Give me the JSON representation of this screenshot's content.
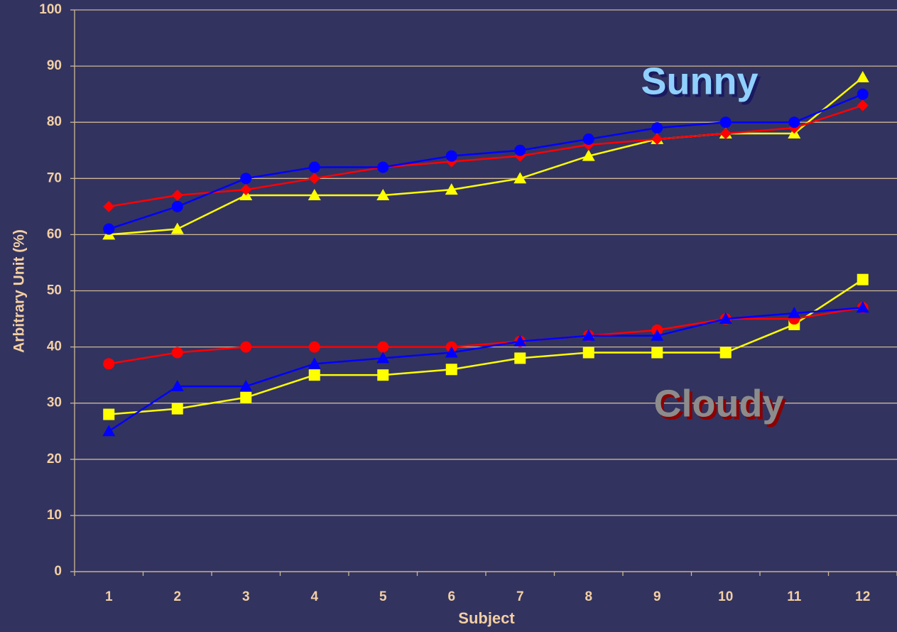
{
  "chart_data": {
    "type": "line",
    "categories": [
      "1",
      "2",
      "3",
      "4",
      "5",
      "6",
      "7",
      "8",
      "9",
      "10",
      "11",
      "12"
    ],
    "series": [
      {
        "color": "#ffff00",
        "marker": "triangle",
        "values": [
          60,
          61,
          67,
          67,
          67,
          68,
          70,
          74,
          77,
          78,
          78,
          88
        ]
      },
      {
        "color": "#ff0000",
        "marker": "diamond",
        "values": [
          65,
          67,
          68,
          70,
          72,
          73,
          74,
          76,
          77,
          78,
          79,
          83
        ]
      },
      {
        "color": "#0000ff",
        "marker": "circle",
        "values": [
          61,
          65,
          70,
          72,
          72,
          74,
          75,
          77,
          79,
          80,
          80,
          85
        ]
      },
      {
        "color": "#ffff00",
        "marker": "square",
        "values": [
          28,
          29,
          31,
          35,
          35,
          36,
          38,
          39,
          39,
          39,
          44,
          52
        ]
      },
      {
        "color": "#ff0000",
        "marker": "circle",
        "values": [
          37,
          39,
          40,
          40,
          40,
          40,
          41,
          42,
          43,
          45,
          45,
          47
        ]
      },
      {
        "color": "#0000ff",
        "marker": "triangle",
        "values": [
          25,
          33,
          33,
          37,
          38,
          39,
          41,
          42,
          42,
          45,
          46,
          47
        ]
      }
    ],
    "annotations": [
      "Sunny",
      "Cloudy"
    ],
    "xlabel": "Subject",
    "ylabel": "Arbitrary Unit (%)",
    "ylim": [
      0,
      100
    ],
    "yticks": [
      0,
      10,
      20,
      30,
      40,
      50,
      60,
      70,
      80,
      90,
      100
    ],
    "grid": true
  }
}
